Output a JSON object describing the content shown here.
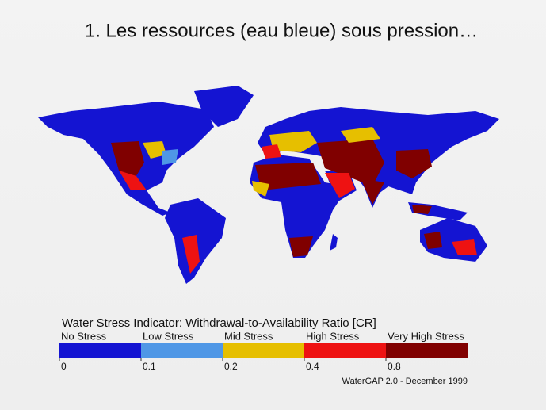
{
  "title": "1. Les ressources (eau bleue) sous pression…",
  "legend": {
    "title": "Water Stress Indicator: Withdrawal-to-Availability Ratio [CR]",
    "classes": [
      {
        "label": "No Stress",
        "color": "#1414d2"
      },
      {
        "label": "Low Stress",
        "color": "#4f97e6"
      },
      {
        "label": "Mid Stress",
        "color": "#e6bf00"
      },
      {
        "label": "High Stress",
        "color": "#ee1212"
      },
      {
        "label": "Very High Stress",
        "color": "#800000"
      }
    ],
    "thresholds": [
      0,
      0.1,
      0.2,
      0.4,
      0.8
    ]
  },
  "credit": "WaterGAP 2.0 - December 1999"
}
